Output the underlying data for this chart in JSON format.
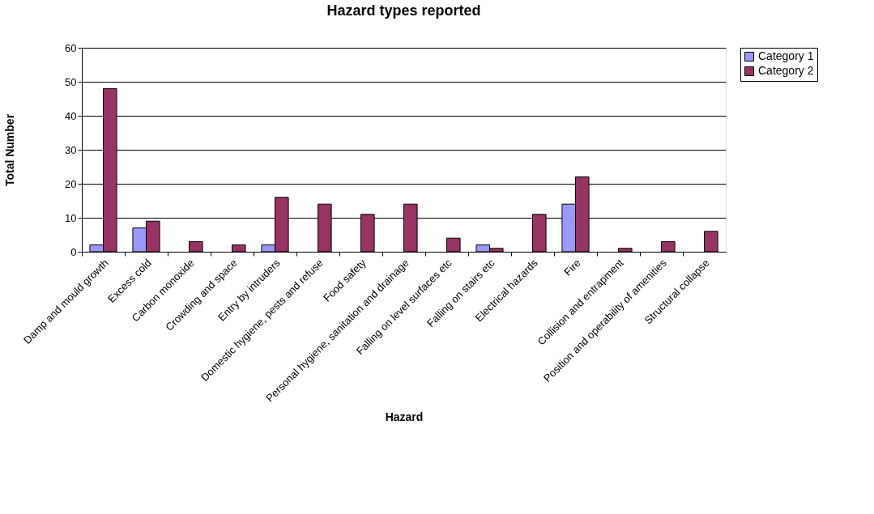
{
  "chart_data": {
    "type": "bar",
    "title": "Hazard types reported",
    "xlabel": "Hazard",
    "ylabel": "Total Number",
    "categories": [
      "Damp and mould growth",
      "Excess cold",
      "Carbon monoxide",
      "Crowding and space",
      "Entry by intruders",
      "Domestic hygiene, pests and refuse",
      "Food safety",
      "Personal hygiene, sanitation and drainage",
      "Falling on level surfaces etc",
      "Falling on stairs etc",
      "Electrical hazards",
      "Fire",
      "Collision and entrapment",
      "Position and operability of amenities",
      "Structural collapse"
    ],
    "series": [
      {
        "name": "Category 1",
        "color": "#9999ff",
        "values": [
          2,
          7,
          null,
          null,
          2,
          null,
          null,
          null,
          null,
          2,
          null,
          14,
          null,
          null,
          null
        ]
      },
      {
        "name": "Category 2",
        "color": "#993366",
        "values": [
          48,
          9,
          3,
          2,
          16,
          14,
          11,
          14,
          4,
          1,
          11,
          22,
          1,
          3,
          6
        ]
      }
    ],
    "ylim": [
      0,
      60
    ],
    "yticks": [
      0,
      10,
      20,
      30,
      40,
      50,
      60
    ],
    "grid": "y",
    "legend": "right"
  }
}
